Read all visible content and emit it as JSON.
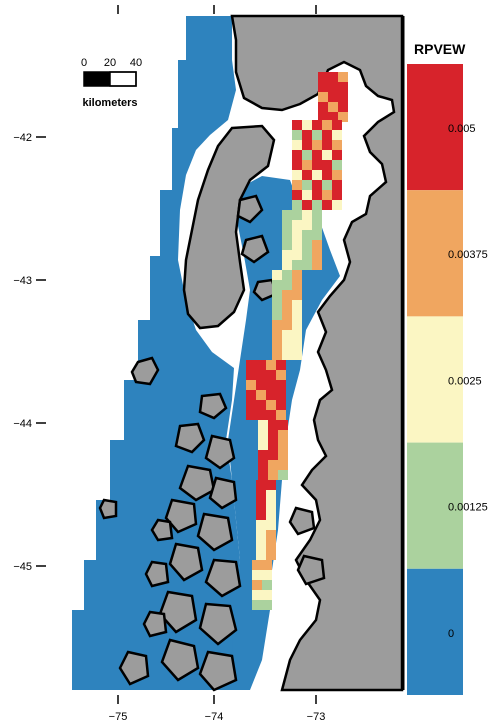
{
  "legend": {
    "title": "RPVEW",
    "classes": [
      {
        "label": "0.005",
        "color": "#d7232b"
      },
      {
        "label": "0.00375",
        "color": "#f0a660"
      },
      {
        "label": "0.0025",
        "color": "#fbf6c3"
      },
      {
        "label": "0.00125",
        "color": "#abd29e"
      },
      {
        "label": "0",
        "color": "#2e83be"
      }
    ]
  },
  "axes": {
    "longitude_ticks": [
      "−75",
      "−74",
      "−73"
    ],
    "latitude_ticks": [
      "−42",
      "−43",
      "−44",
      "−45"
    ]
  },
  "scale_bar": {
    "labels": [
      "0",
      "20",
      "40"
    ],
    "unit": "kilometers"
  },
  "colors": {
    "land": "#9c9c9c",
    "ocean_grid": "#2e83be",
    "coastline": "#000000",
    "coast_buffer": "#ffffff"
  }
}
